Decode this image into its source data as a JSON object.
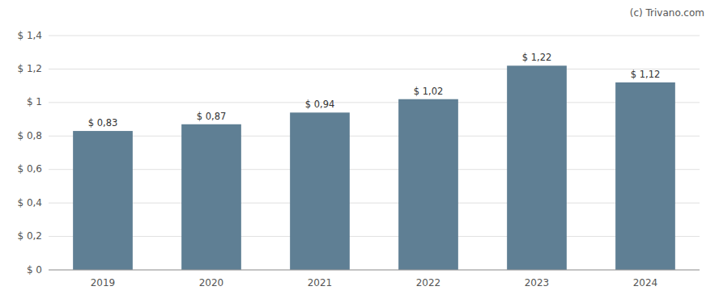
{
  "chart_data": {
    "type": "bar",
    "categories": [
      "2019",
      "2020",
      "2021",
      "2022",
      "2023",
      "2024"
    ],
    "values": [
      0.83,
      0.87,
      0.94,
      1.02,
      1.22,
      1.12
    ],
    "value_labels": [
      "$ 0,83",
      "$ 0,87",
      "$ 0,94",
      "$ 1,02",
      "$ 1,22",
      "$ 1,12"
    ],
    "data_labels": true,
    "color": "#5f7f94",
    "ylim": [
      0,
      1.4
    ],
    "yticks": [
      {
        "value": 0,
        "label": "$ 0"
      },
      {
        "value": 0.2,
        "label": "$ 0,2"
      },
      {
        "value": 0.4,
        "label": "$ 0,4"
      },
      {
        "value": 0.6,
        "label": "$ 0,6"
      },
      {
        "value": 0.8,
        "label": "$ 0,8"
      },
      {
        "value": 1.0,
        "label": "$ 1"
      },
      {
        "value": 1.2,
        "label": "$ 1,2"
      },
      {
        "value": 1.4,
        "label": "$ 1,4"
      }
    ],
    "grid": true,
    "annotation": "(c) Trivano.com"
  }
}
